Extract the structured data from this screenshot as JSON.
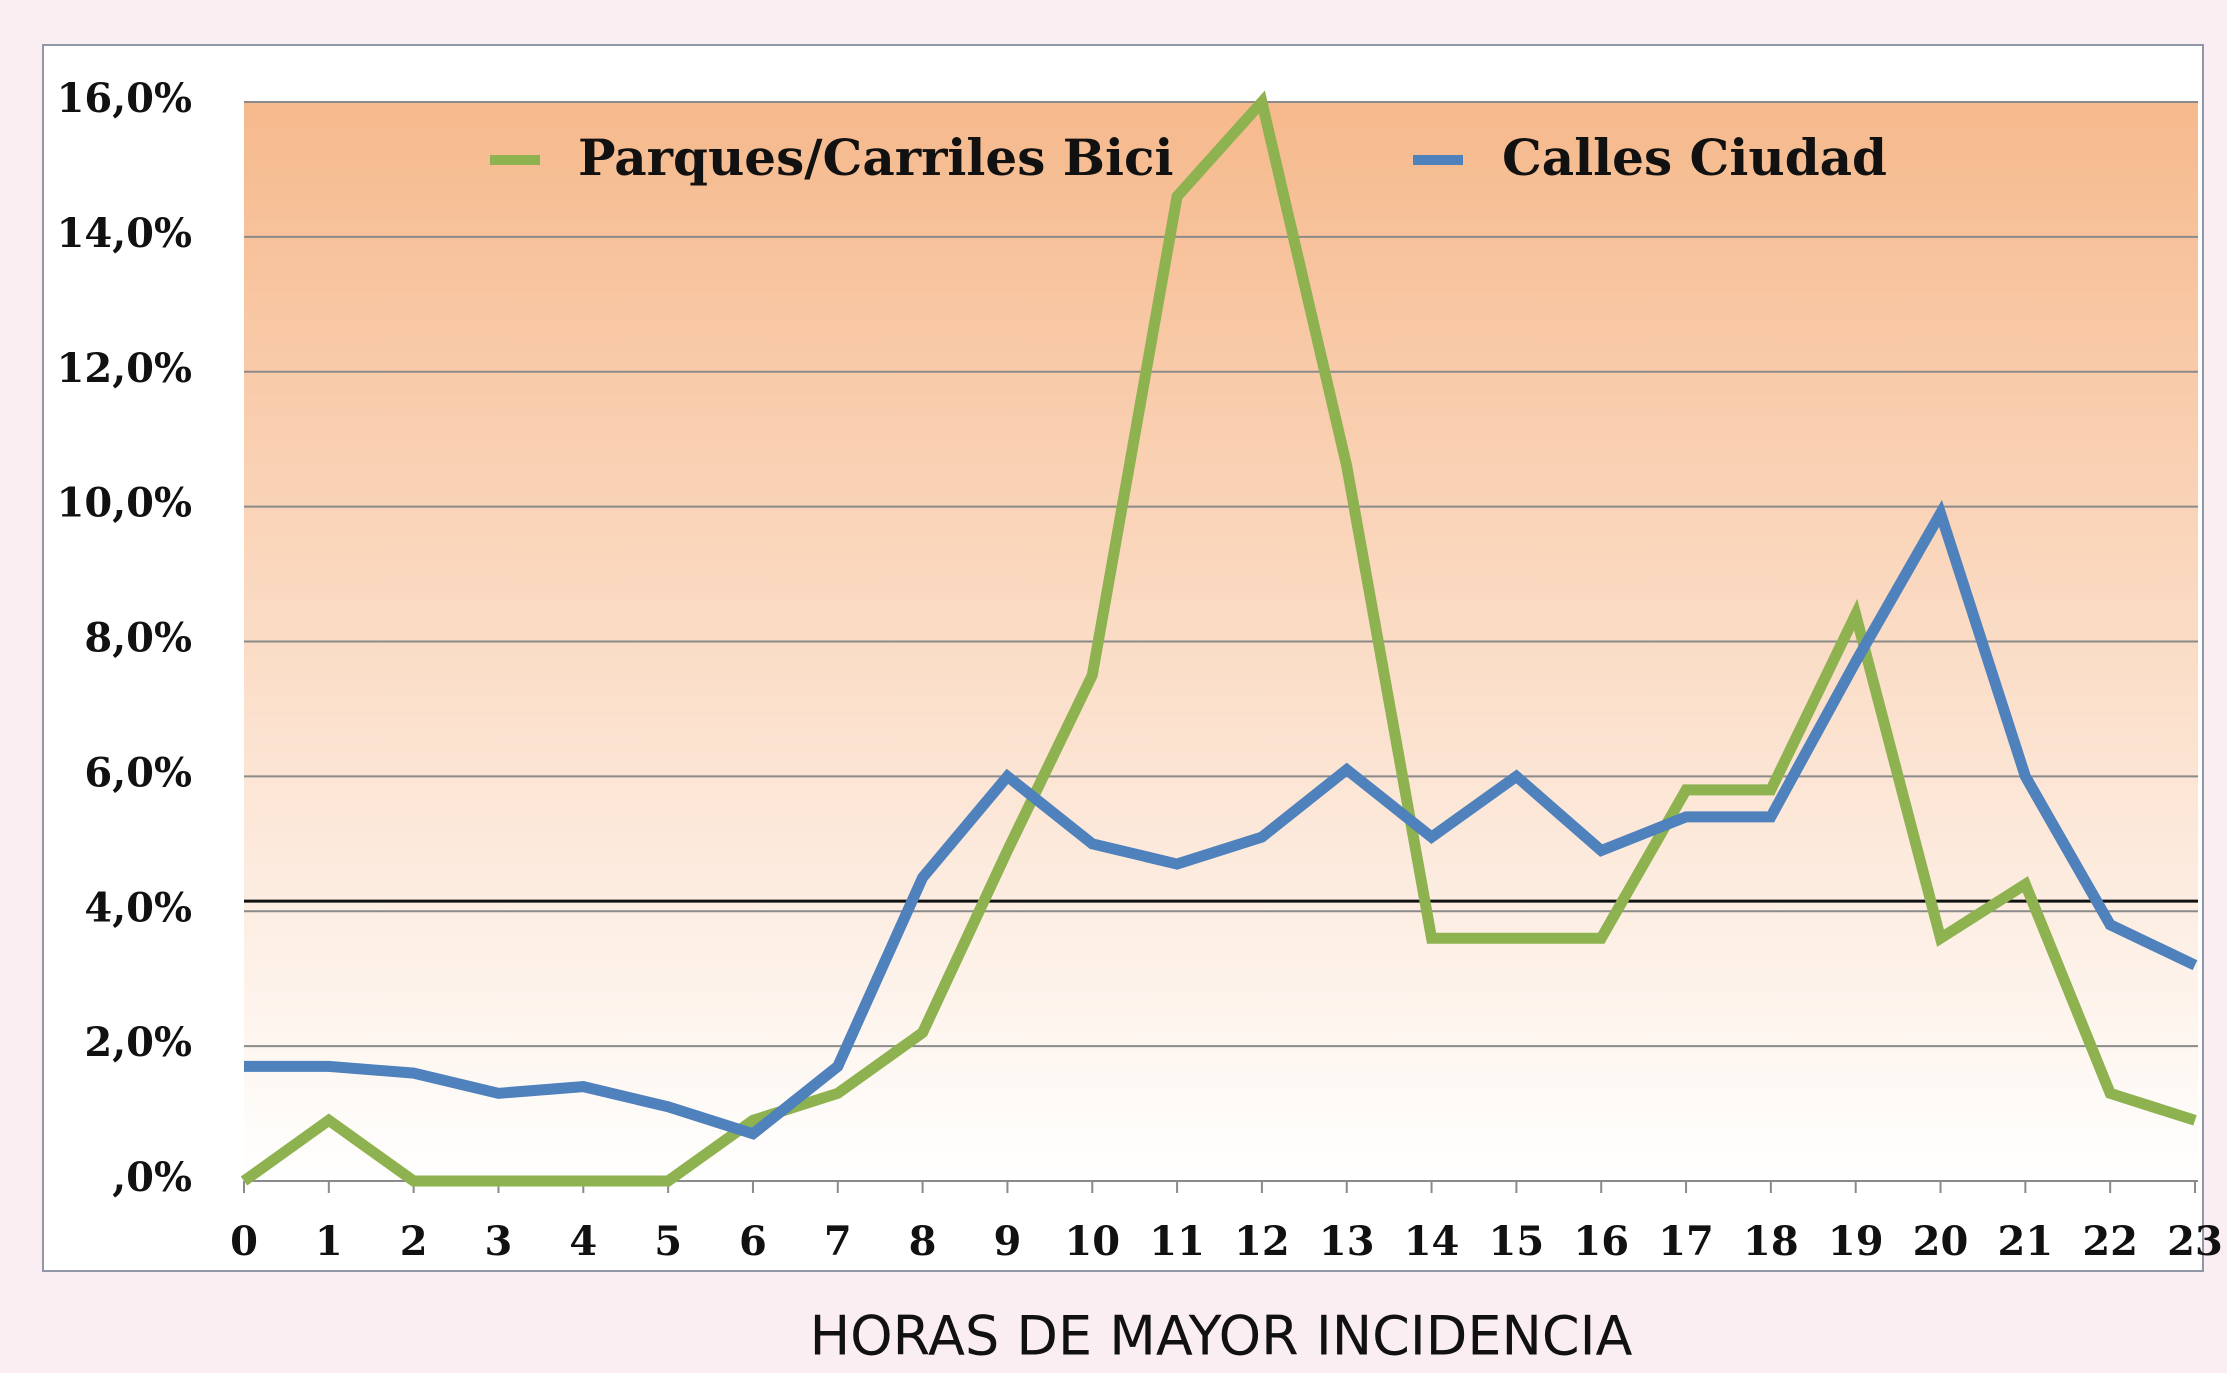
{
  "chart_data": {
    "type": "line",
    "x_label": "HORAS DE MAYOR INCIDENCIA",
    "x": [
      0,
      1,
      2,
      3,
      4,
      5,
      6,
      7,
      8,
      9,
      10,
      11,
      12,
      13,
      14,
      15,
      16,
      17,
      18,
      19,
      20,
      21,
      22,
      23
    ],
    "xlim": [
      0,
      23
    ],
    "xticks": [
      0,
      1,
      2,
      3,
      4,
      5,
      6,
      7,
      8,
      9,
      10,
      11,
      12,
      13,
      14,
      15,
      16,
      17,
      18,
      19,
      20,
      21,
      22,
      23
    ],
    "ylim": [
      0,
      16
    ],
    "yticks": [
      {
        "value": 0,
        "label": ",0%"
      },
      {
        "value": 2,
        "label": "2,0%"
      },
      {
        "value": 4,
        "label": "4,0%"
      },
      {
        "value": 6,
        "label": "6,0%"
      },
      {
        "value": 8,
        "label": "8,0%"
      },
      {
        "value": 10,
        "label": "10,0%"
      },
      {
        "value": 12,
        "label": "12,0%"
      },
      {
        "value": 14,
        "label": "14,0%"
      },
      {
        "value": 16,
        "label": "16,0%"
      }
    ],
    "grid": true,
    "reference_line": 4.15,
    "series": [
      {
        "name": "Parques/Carriles Bici",
        "color": "#8db24f",
        "values": [
          0,
          0.9,
          0,
          0,
          0,
          0,
          0.9,
          1.3,
          2.2,
          4.9,
          7.5,
          14.6,
          16.0,
          10.6,
          3.6,
          3.6,
          3.6,
          5.8,
          5.8,
          8.4,
          3.6,
          4.4,
          1.3,
          0.9
        ]
      },
      {
        "name": "Calles Ciudad",
        "color": "#4f81bd",
        "values": [
          1.7,
          1.7,
          1.6,
          1.3,
          1.4,
          1.1,
          0.7,
          1.7,
          4.5,
          6.0,
          5.0,
          4.7,
          5.1,
          6.1,
          5.1,
          6.0,
          4.9,
          5.4,
          5.4,
          7.7,
          9.9,
          6.0,
          3.8,
          3.2
        ]
      }
    ]
  }
}
